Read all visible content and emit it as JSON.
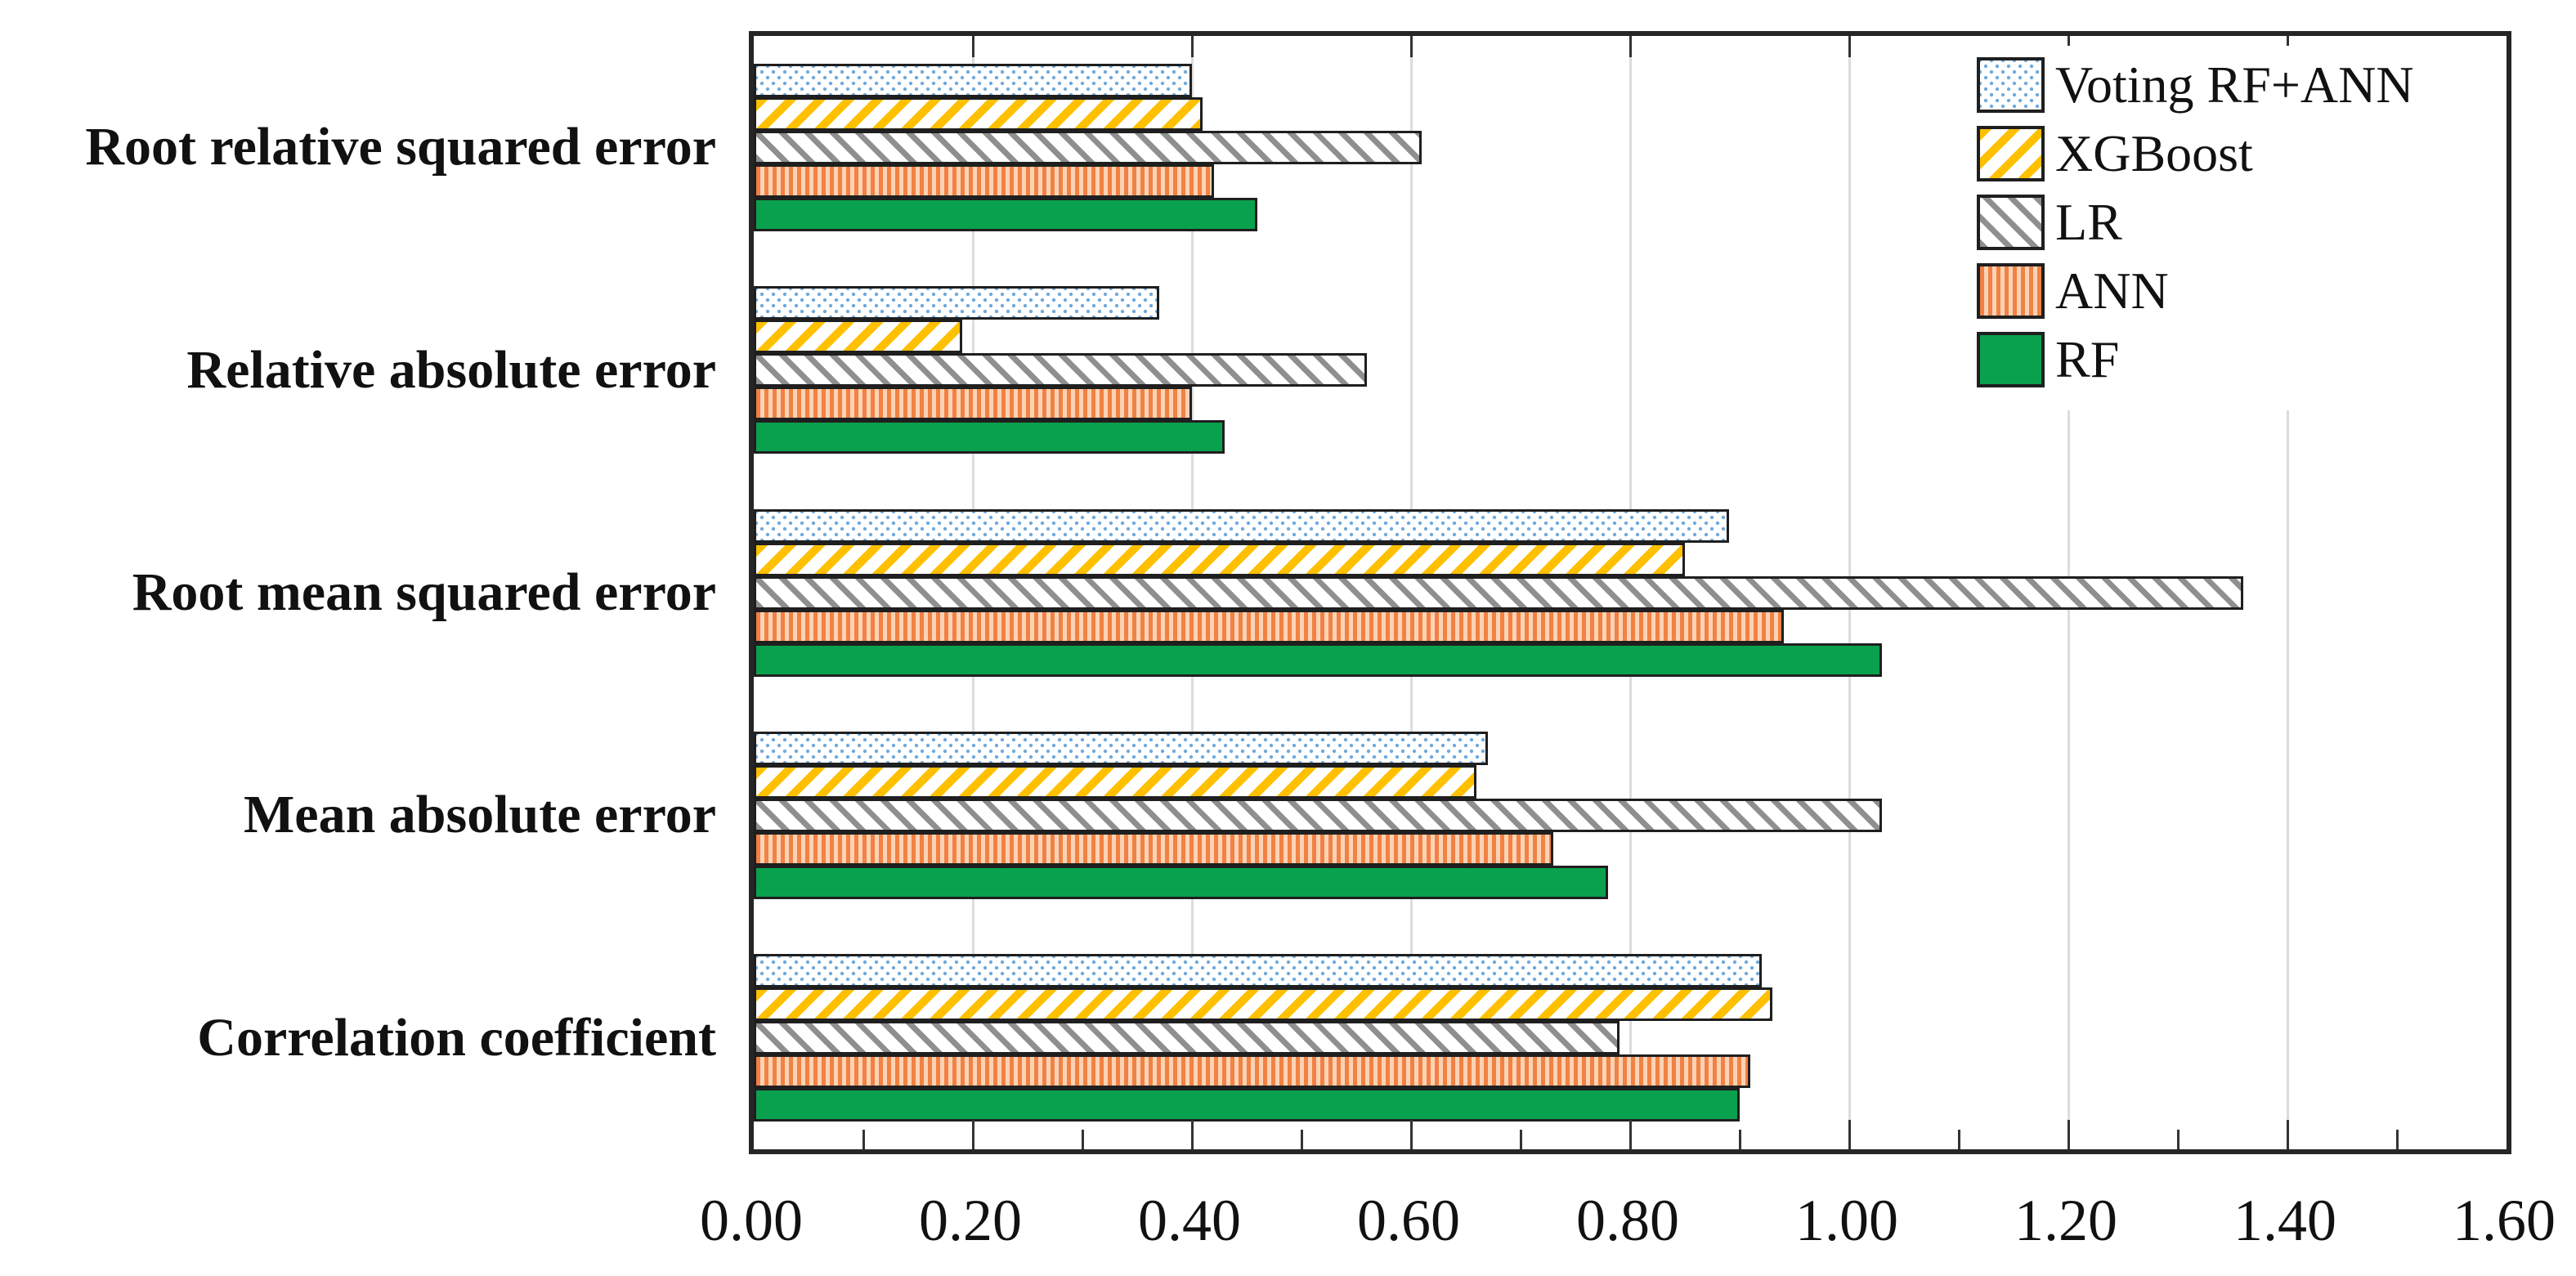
{
  "chart_data": {
    "type": "bar",
    "orientation": "horizontal",
    "title": "",
    "xlabel": "",
    "ylabel": "",
    "categories": [
      "Root relative squared error",
      "Relative absolute error",
      "Root mean squared error",
      "Mean absolute error",
      "Correlation coefficient"
    ],
    "series": [
      {
        "name": "Voting RF+ANN",
        "pattern": "blue-dots",
        "values": [
          0.4,
          0.37,
          0.89,
          0.67,
          0.92
        ]
      },
      {
        "name": "XGBoost",
        "pattern": "gold-diagonal-fwd",
        "values": [
          0.41,
          0.19,
          0.85,
          0.66,
          0.93
        ]
      },
      {
        "name": "LR",
        "pattern": "gray-diagonal-back",
        "values": [
          0.61,
          0.56,
          1.36,
          1.03,
          0.79
        ]
      },
      {
        "name": "ANN",
        "pattern": "orange-vertical",
        "values": [
          0.42,
          0.4,
          0.94,
          0.73,
          0.91
        ]
      },
      {
        "name": "RF",
        "pattern": "solid-green",
        "values": [
          0.46,
          0.43,
          1.03,
          0.78,
          0.9
        ]
      }
    ],
    "xlim": [
      0,
      1.6
    ],
    "x_major_step": 0.2,
    "x_minor_step": 0.1,
    "x_tick_labels": [
      "0.00",
      "0.20",
      "0.40",
      "0.60",
      "0.80",
      "1.00",
      "1.20",
      "1.40",
      "1.60"
    ],
    "grid": "vertical gridlines at major ticks",
    "legend_position": "top-right inside plot"
  },
  "colors": {
    "background": "#ffffff",
    "plot_border": "#262626",
    "bar_border": "#1f1f1f",
    "gridline": "#dcdcdc",
    "tick": "#333333",
    "text": "#111111",
    "voting_dot_blue": "#6faadc",
    "xgboost_gold": "#ffc000",
    "lr_gray": "#8f8f8f",
    "ann_orange_dark": "#f18144",
    "ann_orange_light": "#fbd3b4",
    "rf_green": "#0aa14e"
  }
}
